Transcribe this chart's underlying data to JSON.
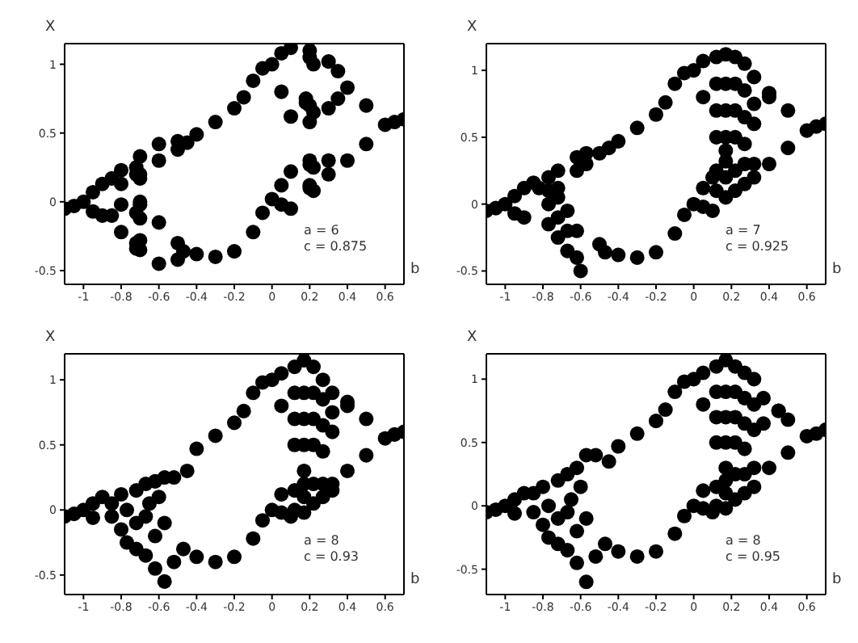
{
  "chart_data": [
    {
      "type": "scatter",
      "xlabel": "b",
      "ylabel": "X",
      "color": "#000000",
      "marker": "circle",
      "xlim": [
        -1.1,
        0.7
      ],
      "ylim": [
        -0.6,
        1.15
      ],
      "xticks": [
        -1,
        -0.8,
        -0.6,
        -0.4,
        -0.2,
        0,
        0.2,
        0.4,
        0.6
      ],
      "yticks": [
        -0.5,
        0,
        0.5,
        1
      ],
      "annotations": [
        "a = 6",
        "c = 0.875"
      ],
      "x": [
        -1.1,
        -1.05,
        -1.0,
        -0.95,
        -0.9,
        -0.85,
        -0.8,
        -0.7,
        -0.6,
        -0.5,
        -0.8,
        -0.7,
        -0.6,
        -0.5,
        -0.45,
        -0.4,
        -0.3,
        -0.2,
        -0.15,
        -0.1,
        -0.05,
        0,
        -0.95,
        -0.9,
        -0.85,
        -0.8,
        -0.7,
        -0.6,
        -0.5,
        -0.8,
        -0.7,
        -0.6,
        -0.5,
        -0.47,
        -0.4,
        -0.3,
        -0.2,
        -0.1,
        -0.05,
        0,
        0.05,
        0.1,
        0.2,
        0.3,
        0.35,
        0.05,
        0.1,
        0.2,
        0.3,
        0.35,
        0.4,
        0.5,
        0.6,
        0.65,
        0.7,
        0.05,
        0.1,
        0.2,
        0.3,
        0.05,
        0.1,
        0.2,
        0.3,
        0.4,
        0.5,
        -0.72,
        -0.7,
        -0.72,
        -0.7,
        -0.72,
        -0.7,
        -0.72,
        -0.7,
        -0.72,
        0.2,
        0.22,
        0.18,
        0.2,
        0.22,
        0.2,
        0.22,
        0.2,
        0.22,
        0.18
      ],
      "values": [
        -0.05,
        -0.03,
        0.0,
        0.07,
        0.13,
        0.17,
        0.23,
        0.33,
        0.42,
        0.44,
        0.13,
        0.2,
        0.3,
        0.38,
        0.43,
        0.49,
        0.58,
        0.68,
        0.76,
        0.88,
        0.97,
        1.0,
        -0.07,
        -0.1,
        -0.1,
        -0.02,
        0.0,
        -0.15,
        -0.3,
        -0.22,
        -0.35,
        -0.45,
        -0.42,
        -0.36,
        -0.38,
        -0.4,
        -0.36,
        -0.22,
        -0.08,
        0.02,
        1.08,
        1.12,
        1.1,
        1.02,
        0.95,
        0.8,
        0.62,
        0.58,
        0.68,
        0.75,
        0.83,
        0.7,
        0.56,
        0.58,
        0.6,
        0.12,
        0.22,
        0.3,
        0.3,
        -0.02,
        -0.05,
        0.1,
        0.2,
        0.3,
        0.42,
        0.25,
        0.17,
        0.2,
        -0.02,
        -0.08,
        -0.12,
        -0.3,
        -0.28,
        -0.34,
        1.05,
        1.0,
        0.75,
        0.7,
        0.65,
        0.27,
        0.25,
        0.12,
        0.08,
        0.72
      ]
    },
    {
      "type": "scatter",
      "xlabel": "b",
      "ylabel": "X",
      "color": "#000000",
      "marker": "circle",
      "xlim": [
        -1.1,
        0.7
      ],
      "ylim": [
        -0.6,
        1.2
      ],
      "xticks": [
        -1,
        -0.8,
        -0.6,
        -0.4,
        -0.2,
        0,
        0.2,
        0.4,
        0.6
      ],
      "yticks": [
        -0.5,
        0,
        0.5,
        1
      ],
      "annotations": [
        "a = 7",
        "c = 0.925"
      ],
      "x": [
        -1.1,
        -1.05,
        -1.0,
        -0.95,
        -0.9,
        -0.85,
        -0.5,
        -0.45,
        -0.4,
        -0.3,
        -0.2,
        -0.15,
        -0.1,
        -0.05,
        0,
        -0.95,
        -0.9,
        -0.5,
        -0.47,
        -0.4,
        -0.3,
        -0.2,
        -0.1,
        -0.05,
        0,
        0.05,
        0.4,
        0.05,
        0.4,
        0.5,
        0.6,
        0.65,
        0.7,
        0.05,
        0.1,
        0.05,
        0.1,
        0.4,
        0.5,
        0.12,
        0.12,
        0.12,
        0.12,
        0.17,
        0.17,
        0.17,
        0.17,
        0.17,
        0.22,
        0.22,
        0.22,
        0.22,
        0.27,
        0.27,
        0.27,
        0.27,
        0.32,
        0.32,
        0.32,
        0.12,
        0.12,
        0.17,
        0.17,
        0.17,
        0.22,
        0.22,
        0.27,
        0.27,
        0.32,
        0.32,
        -0.82,
        -0.77,
        -0.77,
        -0.72,
        -0.72,
        -0.62,
        -0.62,
        -0.57,
        -0.57,
        -0.77,
        -0.77,
        -0.72,
        -0.72,
        -0.72,
        -0.67,
        -0.67,
        -0.67,
        -0.62,
        -0.62,
        -0.6
      ],
      "values": [
        -0.05,
        -0.03,
        0.0,
        0.06,
        0.12,
        0.16,
        0.38,
        0.42,
        0.47,
        0.57,
        0.67,
        0.76,
        0.9,
        0.98,
        1.0,
        -0.07,
        -0.1,
        -0.3,
        -0.36,
        -0.38,
        -0.4,
        -0.36,
        -0.22,
        -0.08,
        0.0,
        1.07,
        0.83,
        0.8,
        0.8,
        0.7,
        0.55,
        0.58,
        0.6,
        0.12,
        0.2,
        -0.02,
        -0.05,
        0.3,
        0.42,
        1.1,
        0.9,
        0.7,
        0.5,
        1.12,
        0.9,
        0.7,
        0.5,
        0.4,
        1.1,
        0.9,
        0.7,
        0.5,
        1.05,
        0.85,
        0.65,
        0.45,
        0.95,
        0.75,
        0.6,
        0.1,
        0.25,
        0.05,
        0.2,
        0.32,
        0.1,
        0.25,
        0.15,
        0.3,
        0.2,
        0.3,
        0.12,
        0.1,
        0.2,
        0.12,
        0.25,
        0.25,
        0.35,
        0.3,
        0.38,
        0.0,
        -0.15,
        0.05,
        -0.1,
        -0.25,
        -0.05,
        -0.2,
        -0.35,
        -0.2,
        -0.4,
        -0.5
      ]
    },
    {
      "type": "scatter",
      "xlabel": "b",
      "ylabel": "X",
      "color": "#000000",
      "marker": "circle",
      "xlim": [
        -1.1,
        0.7
      ],
      "ylim": [
        -0.65,
        1.2
      ],
      "xticks": [
        -1,
        -0.8,
        -0.6,
        -0.4,
        -0.2,
        0,
        0.2,
        0.4,
        0.6
      ],
      "yticks": [
        -0.5,
        0,
        0.5,
        1
      ],
      "annotations": [
        "a = 8",
        "c = 0.93"
      ],
      "x": [
        -1.1,
        -1.05,
        -1.0,
        -0.95,
        -0.9,
        -0.45,
        -0.4,
        -0.3,
        -0.2,
        -0.15,
        -0.1,
        -0.05,
        0,
        -0.95,
        -0.47,
        -0.4,
        -0.3,
        -0.2,
        -0.1,
        -0.05,
        0,
        0.05,
        0.4,
        0.05,
        0.4,
        0.5,
        0.6,
        0.65,
        0.7,
        0.05,
        0.05,
        0.1,
        0.4,
        0.5,
        0.12,
        0.12,
        0.12,
        0.12,
        0.17,
        0.17,
        0.17,
        0.17,
        0.17,
        0.22,
        0.22,
        0.22,
        0.22,
        0.27,
        0.27,
        0.27,
        0.27,
        0.32,
        0.32,
        0.32,
        0.12,
        0.12,
        0.17,
        0.17,
        0.17,
        0.22,
        0.22,
        0.27,
        0.27,
        0.32,
        0.32,
        -0.85,
        -0.85,
        -0.8,
        -0.8,
        -0.77,
        -0.77,
        -0.72,
        -0.72,
        -0.72,
        -0.67,
        -0.67,
        -0.67,
        -0.62,
        -0.62,
        -0.62,
        -0.57,
        -0.57,
        -0.57,
        -0.52,
        -0.52,
        -0.6,
        -0.65
      ],
      "values": [
        -0.05,
        -0.03,
        0.0,
        0.05,
        0.1,
        0.3,
        0.47,
        0.57,
        0.67,
        0.76,
        0.9,
        0.98,
        1.0,
        -0.06,
        -0.3,
        -0.36,
        -0.4,
        -0.36,
        -0.22,
        -0.08,
        0.0,
        1.05,
        0.83,
        0.8,
        0.8,
        0.7,
        0.55,
        0.58,
        0.6,
        0.12,
        -0.02,
        -0.05,
        0.3,
        0.42,
        1.1,
        0.9,
        0.7,
        0.5,
        1.15,
        0.9,
        0.7,
        0.5,
        0.3,
        1.1,
        0.9,
        0.7,
        0.5,
        1.0,
        0.85,
        0.65,
        0.45,
        0.9,
        0.75,
        0.6,
        0.0,
        0.15,
        -0.02,
        0.1,
        0.2,
        0.05,
        0.2,
        0.1,
        0.2,
        0.15,
        0.2,
        0.05,
        -0.05,
        0.12,
        -0.15,
        0.0,
        -0.25,
        0.15,
        -0.1,
        -0.3,
        0.2,
        -0.05,
        -0.35,
        0.22,
        -0.2,
        -0.45,
        0.25,
        -0.1,
        -0.55,
        0.25,
        -0.4,
        0.1,
        0.05
      ]
    },
    {
      "type": "scatter",
      "xlabel": "b",
      "ylabel": "X",
      "color": "#000000",
      "marker": "circle",
      "xlim": [
        -1.1,
        0.7
      ],
      "ylim": [
        -0.7,
        1.2
      ],
      "xticks": [
        -1,
        -0.8,
        -0.6,
        -0.4,
        -0.2,
        0,
        0.2,
        0.4,
        0.6
      ],
      "yticks": [
        -0.5,
        0,
        0.5,
        1
      ],
      "annotations": [
        "a = 8",
        "c = 0.95"
      ],
      "x": [
        -1.1,
        -1.05,
        -1.0,
        -0.95,
        -0.9,
        -0.45,
        -0.4,
        -0.3,
        -0.2,
        -0.15,
        -0.1,
        -0.05,
        0,
        -0.95,
        -0.47,
        -0.4,
        -0.3,
        -0.2,
        -0.1,
        -0.05,
        0,
        0.05,
        0.45,
        0.05,
        0.45,
        0.5,
        0.6,
        0.65,
        0.7,
        0.05,
        0.05,
        0.1,
        0.4,
        0.5,
        0.12,
        0.12,
        0.12,
        0.12,
        0.17,
        0.17,
        0.17,
        0.17,
        0.17,
        0.22,
        0.22,
        0.22,
        0.22,
        0.27,
        0.27,
        0.27,
        0.27,
        0.32,
        0.32,
        0.32,
        0.37,
        0.37,
        0.12,
        0.12,
        0.17,
        0.17,
        0.17,
        0.22,
        0.22,
        0.27,
        0.27,
        0.32,
        0.32,
        -0.85,
        -0.85,
        -0.8,
        -0.8,
        -0.77,
        -0.77,
        -0.72,
        -0.72,
        -0.72,
        -0.67,
        -0.67,
        -0.67,
        -0.62,
        -0.62,
        -0.62,
        -0.57,
        -0.57,
        -0.57,
        -0.52,
        -0.52,
        -0.6,
        -0.65
      ],
      "values": [
        -0.05,
        -0.03,
        0.0,
        0.05,
        0.1,
        0.35,
        0.47,
        0.57,
        0.67,
        0.76,
        0.9,
        0.98,
        1.0,
        -0.06,
        -0.3,
        -0.36,
        -0.4,
        -0.36,
        -0.22,
        -0.08,
        0.0,
        1.05,
        0.75,
        0.8,
        0.75,
        0.68,
        0.55,
        0.57,
        0.6,
        0.12,
        -0.02,
        -0.05,
        0.3,
        0.42,
        1.1,
        0.9,
        0.7,
        0.5,
        1.15,
        0.9,
        0.7,
        0.5,
        0.3,
        1.1,
        0.9,
        0.7,
        0.5,
        1.05,
        0.85,
        0.65,
        0.45,
        1.0,
        0.8,
        0.6,
        0.85,
        0.65,
        0.0,
        0.15,
        -0.02,
        0.1,
        0.2,
        0.05,
        0.25,
        0.1,
        0.25,
        0.15,
        0.3,
        0.1,
        -0.05,
        0.15,
        -0.15,
        0.0,
        -0.25,
        0.2,
        -0.1,
        -0.3,
        0.25,
        -0.05,
        -0.35,
        0.3,
        -0.2,
        -0.45,
        0.4,
        -0.1,
        -0.6,
        0.4,
        -0.4,
        0.15,
        0.05
      ]
    }
  ]
}
